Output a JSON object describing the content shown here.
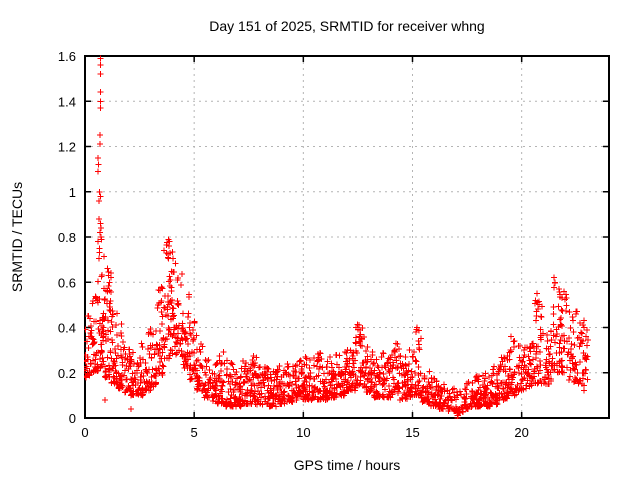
{
  "chart_data": {
    "type": "scatter",
    "title": "Day 151 of 2025, SRMTID for receiver whng",
    "xlabel": "GPS time / hours",
    "ylabel": "SRMTID / TECUs",
    "xlim": [
      0,
      24
    ],
    "ylim": [
      0,
      1.6
    ],
    "xticks": [
      0,
      5,
      10,
      15,
      20
    ],
    "xtick_labels": [
      "0",
      "5",
      "10",
      "15",
      "20"
    ],
    "yticks": [
      0,
      0.2,
      0.4,
      0.6,
      0.8,
      1,
      1.2,
      1.4,
      1.6
    ],
    "ytick_labels": [
      "0",
      "0.2",
      "0.4",
      "0.6",
      "0.8",
      "1",
      "1.2",
      "1.4",
      "1.6"
    ],
    "grid": "dotted-major-both",
    "legend": "none",
    "marker": {
      "shape": "plus",
      "color": "#ff0000",
      "size": 7
    },
    "grid_color": "#b4b4b4",
    "border_color": "#000000",
    "background_color": "#ffffff",
    "series_name": "SRMTID",
    "envelope_bins": [
      [
        0.0,
        0.3,
        0.18,
        0.46,
        30
      ],
      [
        0.3,
        0.6,
        0.2,
        0.55,
        35
      ],
      [
        0.6,
        0.9,
        0.22,
        0.8,
        45
      ],
      [
        0.9,
        1.2,
        0.18,
        0.66,
        40
      ],
      [
        1.2,
        1.5,
        0.15,
        0.48,
        35
      ],
      [
        1.5,
        1.8,
        0.13,
        0.42,
        32
      ],
      [
        1.8,
        2.1,
        0.11,
        0.34,
        30
      ],
      [
        2.1,
        2.4,
        0.1,
        0.3,
        28
      ],
      [
        2.4,
        2.7,
        0.1,
        0.33,
        28
      ],
      [
        2.7,
        3.0,
        0.12,
        0.38,
        28
      ],
      [
        3.0,
        3.3,
        0.14,
        0.46,
        30
      ],
      [
        3.3,
        3.6,
        0.18,
        0.58,
        32
      ],
      [
        3.6,
        3.9,
        0.25,
        0.78,
        35
      ],
      [
        3.9,
        4.2,
        0.28,
        0.74,
        35
      ],
      [
        4.2,
        4.5,
        0.27,
        0.65,
        32
      ],
      [
        4.5,
        4.8,
        0.22,
        0.55,
        30
      ],
      [
        4.8,
        5.1,
        0.17,
        0.44,
        30
      ],
      [
        5.1,
        5.4,
        0.12,
        0.33,
        28
      ],
      [
        5.4,
        5.7,
        0.09,
        0.27,
        28
      ],
      [
        5.7,
        6.0,
        0.07,
        0.24,
        28
      ],
      [
        6.0,
        6.4,
        0.06,
        0.3,
        40
      ],
      [
        6.4,
        6.8,
        0.05,
        0.26,
        40
      ],
      [
        6.8,
        7.2,
        0.05,
        0.23,
        40
      ],
      [
        7.2,
        7.6,
        0.06,
        0.26,
        40
      ],
      [
        7.6,
        8.0,
        0.06,
        0.28,
        40
      ],
      [
        8.0,
        8.4,
        0.06,
        0.25,
        40
      ],
      [
        8.4,
        8.8,
        0.05,
        0.22,
        40
      ],
      [
        8.8,
        9.2,
        0.06,
        0.23,
        40
      ],
      [
        9.2,
        9.6,
        0.07,
        0.24,
        40
      ],
      [
        9.6,
        10.0,
        0.08,
        0.26,
        40
      ],
      [
        10.0,
        10.4,
        0.08,
        0.28,
        40
      ],
      [
        10.4,
        10.8,
        0.08,
        0.3,
        40
      ],
      [
        10.8,
        11.2,
        0.08,
        0.28,
        40
      ],
      [
        11.2,
        11.6,
        0.09,
        0.28,
        40
      ],
      [
        11.6,
        12.0,
        0.1,
        0.3,
        40
      ],
      [
        12.0,
        12.4,
        0.12,
        0.34,
        40
      ],
      [
        12.4,
        12.8,
        0.14,
        0.42,
        38
      ],
      [
        12.8,
        13.2,
        0.11,
        0.32,
        38
      ],
      [
        13.2,
        13.6,
        0.09,
        0.28,
        38
      ],
      [
        13.6,
        14.0,
        0.09,
        0.29,
        38
      ],
      [
        14.0,
        14.4,
        0.1,
        0.33,
        38
      ],
      [
        14.4,
        14.8,
        0.08,
        0.28,
        38
      ],
      [
        14.8,
        15.1,
        0.09,
        0.3,
        28
      ],
      [
        15.1,
        15.4,
        0.1,
        0.4,
        28
      ],
      [
        15.4,
        15.8,
        0.07,
        0.22,
        35
      ],
      [
        15.8,
        16.2,
        0.05,
        0.18,
        35
      ],
      [
        16.2,
        16.6,
        0.04,
        0.16,
        32
      ],
      [
        16.6,
        17.0,
        0.03,
        0.13,
        30
      ],
      [
        17.0,
        17.35,
        0.02,
        0.12,
        20
      ],
      [
        17.35,
        17.8,
        0.04,
        0.17,
        35
      ],
      [
        17.8,
        18.2,
        0.05,
        0.19,
        38
      ],
      [
        18.2,
        18.6,
        0.05,
        0.21,
        38
      ],
      [
        18.6,
        19.0,
        0.06,
        0.23,
        38
      ],
      [
        19.0,
        19.4,
        0.08,
        0.28,
        38
      ],
      [
        19.4,
        19.8,
        0.1,
        0.35,
        36
      ],
      [
        19.8,
        20.2,
        0.12,
        0.32,
        36
      ],
      [
        20.2,
        20.6,
        0.14,
        0.34,
        34
      ],
      [
        20.6,
        21.0,
        0.15,
        0.52,
        34
      ],
      [
        21.0,
        21.35,
        0.15,
        0.4,
        30
      ],
      [
        21.35,
        21.75,
        0.2,
        0.6,
        34
      ],
      [
        21.75,
        22.15,
        0.2,
        0.55,
        36
      ],
      [
        22.15,
        22.55,
        0.16,
        0.48,
        34
      ],
      [
        22.55,
        23.05,
        0.12,
        0.43,
        36
      ]
    ],
    "feature_points": [
      [
        0.72,
        1.59
      ],
      [
        0.72,
        1.56
      ],
      [
        0.72,
        1.52
      ],
      [
        0.71,
        1.44
      ],
      [
        0.71,
        1.4
      ],
      [
        0.7,
        1.37
      ],
      [
        0.68,
        1.25
      ],
      [
        0.68,
        1.21
      ],
      [
        0.6,
        1.15
      ],
      [
        0.61,
        1.12
      ],
      [
        0.6,
        1.09
      ],
      [
        0.66,
        1.0
      ],
      [
        0.7,
        0.98
      ],
      [
        0.64,
        0.96
      ],
      [
        0.63,
        0.88
      ],
      [
        0.7,
        0.86
      ],
      [
        0.74,
        0.84
      ],
      [
        0.69,
        0.82
      ],
      [
        0.73,
        0.8
      ],
      [
        0.76,
        0.79
      ],
      [
        1.02,
        0.66
      ],
      [
        1.08,
        0.63
      ],
      [
        1.12,
        0.6
      ],
      [
        0.92,
        0.08
      ],
      [
        2.1,
        0.04
      ],
      [
        3.82,
        0.79
      ],
      [
        3.87,
        0.78
      ],
      [
        3.85,
        0.76
      ],
      [
        3.9,
        0.73
      ],
      [
        3.8,
        0.71
      ],
      [
        12.55,
        0.41
      ],
      [
        12.6,
        0.39
      ],
      [
        12.62,
        0.37
      ],
      [
        15.2,
        0.4
      ],
      [
        15.16,
        0.38
      ],
      [
        19.52,
        0.36
      ],
      [
        20.7,
        0.55
      ],
      [
        20.72,
        0.51
      ],
      [
        20.68,
        0.47
      ],
      [
        21.48,
        0.62
      ],
      [
        21.52,
        0.6
      ],
      [
        21.95,
        0.56
      ],
      [
        22.05,
        0.53
      ],
      [
        22.85,
        0.43
      ],
      [
        23.0,
        0.39
      ],
      [
        22.95,
        0.36
      ],
      [
        17.05,
        0.01
      ],
      [
        17.07,
        0.0
      ],
      [
        17.09,
        0.01
      ]
    ]
  }
}
